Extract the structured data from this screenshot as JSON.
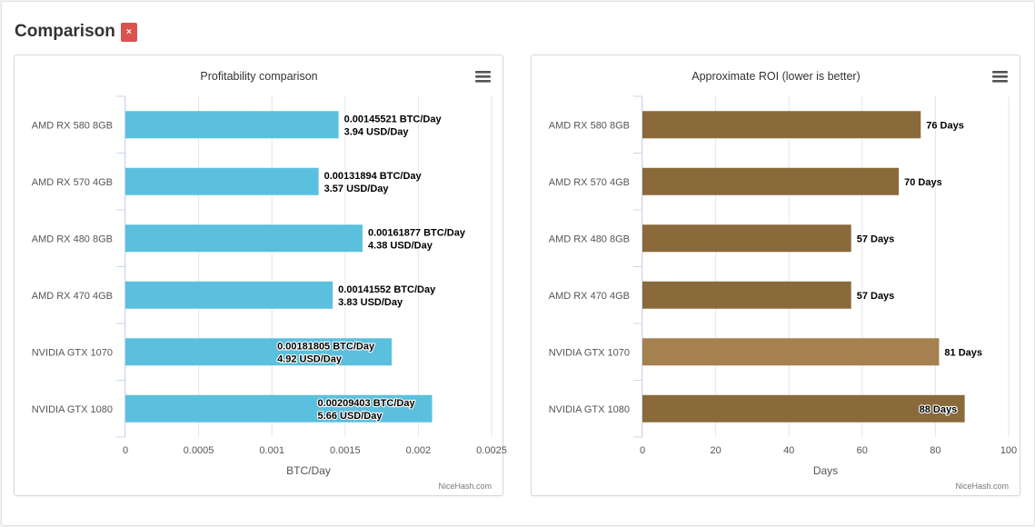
{
  "page": {
    "title": "Comparison",
    "close_glyph": "×",
    "close_color": "#d9534f"
  },
  "chart_data": [
    {
      "type": "bar",
      "orientation": "horizontal",
      "title": "Profitability comparison",
      "categories": [
        "AMD RX 580 8GB",
        "AMD RX 570 4GB",
        "AMD RX 480 8GB",
        "AMD RX 470 4GB",
        "NVIDIA GTX 1070",
        "NVIDIA GTX 1080"
      ],
      "values": [
        0.00145521,
        0.00131894,
        0.00161877,
        0.00141552,
        0.00181805,
        0.00209403
      ],
      "data_labels": [
        [
          "0.00145521 BTC/Day",
          "3.94 USD/Day"
        ],
        [
          "0.00131894 BTC/Day",
          "3.57 USD/Day"
        ],
        [
          "0.00161877 BTC/Day",
          "4.38 USD/Day"
        ],
        [
          "0.00141552 BTC/Day",
          "3.83 USD/Day"
        ],
        [
          "0.00181805 BTC/Day",
          "4.92 USD/Day"
        ],
        [
          "0.00209403 BTC/Day",
          "5.66 USD/Day"
        ]
      ],
      "label_inside": [
        false,
        false,
        false,
        false,
        true,
        true
      ],
      "xlabel": "BTC/Day",
      "xlim": [
        0,
        0.0025
      ],
      "ticks": [
        0,
        0.0005,
        0.001,
        0.0015,
        0.002,
        0.0025
      ],
      "tick_labels": [
        "0",
        "0.0005",
        "0.001",
        "0.0015",
        "0.002",
        "0.0025"
      ],
      "grid": true,
      "bar_color": "#5bc0de",
      "credits": "NiceHash.com"
    },
    {
      "type": "bar",
      "orientation": "horizontal",
      "title": "Approximate ROI (lower is better)",
      "categories": [
        "AMD RX 580 8GB",
        "AMD RX 570 4GB",
        "AMD RX 480 8GB",
        "AMD RX 470 4GB",
        "NVIDIA GTX 1070",
        "NVIDIA GTX 1080"
      ],
      "values": [
        76,
        70,
        57,
        57,
        81,
        88
      ],
      "data_labels": [
        [
          "76 Days"
        ],
        [
          "70 Days"
        ],
        [
          "57 Days"
        ],
        [
          "57 Days"
        ],
        [
          "81 Days"
        ],
        [
          "88 Days"
        ]
      ],
      "label_inside": [
        false,
        false,
        false,
        false,
        false,
        true
      ],
      "xlabel": "Days",
      "xlim": [
        0,
        100
      ],
      "ticks": [
        0,
        20,
        40,
        60,
        80,
        100
      ],
      "tick_labels": [
        "0",
        "20",
        "40",
        "60",
        "80",
        "100"
      ],
      "grid": true,
      "bar_color": "#8a6a3b",
      "highlight_color": "#a5814f",
      "highlight_index": 4,
      "credits": "NiceHash.com"
    }
  ]
}
